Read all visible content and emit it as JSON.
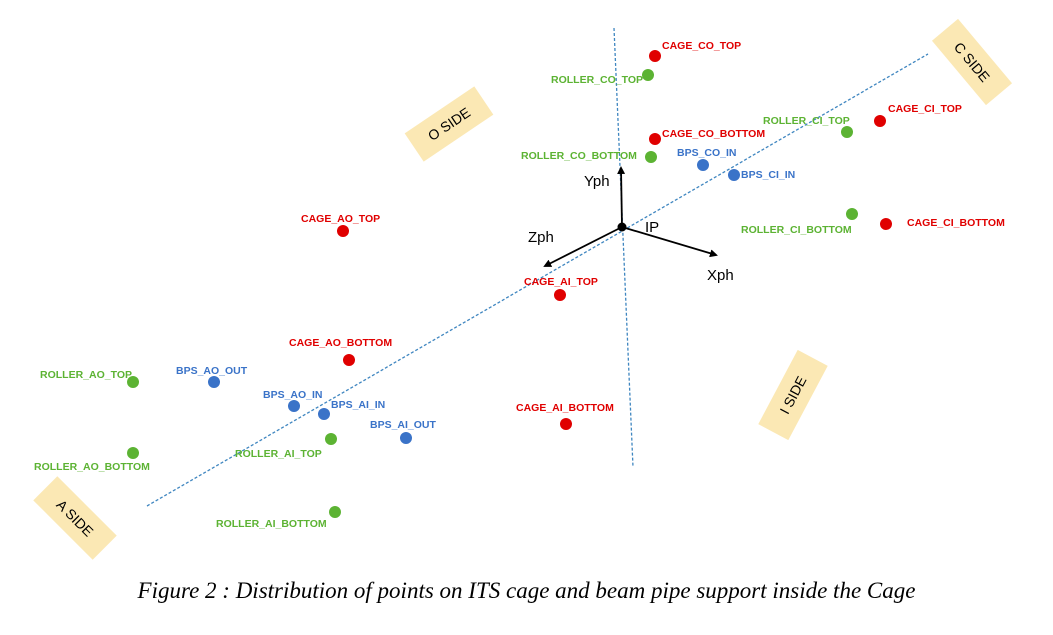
{
  "figure": {
    "caption": "Figure 2 : Distribution of points on ITS cage and beam pipe support inside the Cage"
  },
  "colors": {
    "cage": "#e00000",
    "roller": "#5cb333",
    "bps": "#3a73c8",
    "beam_line": "#3f86c0",
    "side_box": "#fbe8b4"
  },
  "sides": {
    "o_side": "O SIDE",
    "c_side": "C SIDE",
    "i_side": "I SIDE",
    "a_side": "A SIDE"
  },
  "axes": {
    "origin": "IP",
    "x": "Xph",
    "y": "Yph",
    "z": "Zph"
  },
  "points": {
    "cage_co_top": "CAGE_CO_TOP",
    "roller_co_top": "ROLLER_CO_TOP",
    "cage_co_bottom": "CAGE_CO_BOTTOM",
    "roller_co_bottom": "ROLLER_CO_BOTTOM",
    "bps_co_in": "BPS_CO_IN",
    "bps_ci_in": "BPS_CI_IN",
    "roller_ci_top": "ROLLER_CI_TOP",
    "cage_ci_top": "CAGE_CI_TOP",
    "roller_ci_bottom": "ROLLER_CI_BOTTOM",
    "cage_ci_bottom": "CAGE_CI_BOTTOM",
    "cage_ao_top": "CAGE_AO_TOP",
    "cage_ai_top": "CAGE_AI_TOP",
    "cage_ao_bottom": "CAGE_AO_BOTTOM",
    "roller_ao_top": "ROLLER_AO_TOP",
    "bps_ao_out": "BPS_AO_OUT",
    "bps_ao_in": "BPS_AO_IN",
    "bps_ai_in": "BPS_AI_IN",
    "bps_ai_out": "BPS_AI_OUT",
    "cage_ai_bottom": "CAGE_AI_BOTTOM",
    "roller_ao_bottom": "ROLLER_AO_BOTTOM",
    "roller_ai_top": "ROLLER_AI_TOP",
    "roller_ai_bottom": "ROLLER_AI_BOTTOM"
  }
}
